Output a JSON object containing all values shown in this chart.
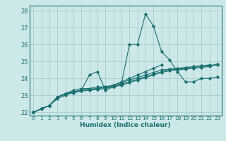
{
  "title": "",
  "xlabel": "Humidex (Indice chaleur)",
  "background_color": "#cce8e8",
  "grid_color": "#aacccc",
  "line_color": "#1a7070",
  "xlim": [
    -0.5,
    23.5
  ],
  "ylim": [
    21.8,
    28.3
  ],
  "yticks": [
    22,
    23,
    24,
    25,
    26,
    27,
    28
  ],
  "xticks": [
    0,
    1,
    2,
    3,
    4,
    5,
    6,
    7,
    8,
    9,
    10,
    11,
    12,
    13,
    14,
    15,
    16,
    17,
    18,
    19,
    20,
    21,
    22,
    23
  ],
  "series": [
    [
      22.0,
      22.2,
      22.4,
      22.8,
      23.0,
      23.2,
      23.3,
      24.2,
      24.4,
      23.3,
      23.5,
      23.7,
      26.0,
      26.0,
      27.8,
      27.1,
      25.6,
      25.1,
      24.4,
      23.8,
      23.8,
      24.0,
      24.0,
      24.1
    ],
    [
      22.0,
      22.2,
      22.4,
      22.9,
      23.1,
      23.3,
      23.4,
      23.4,
      23.5,
      23.5,
      23.6,
      23.8,
      24.0,
      24.2,
      24.4,
      24.6,
      24.8,
      null,
      null,
      null,
      null,
      null,
      null,
      null
    ],
    [
      22.0,
      22.2,
      22.4,
      22.9,
      23.1,
      23.2,
      23.3,
      23.35,
      23.4,
      23.5,
      23.6,
      23.75,
      23.9,
      24.05,
      24.2,
      24.35,
      24.5,
      24.55,
      24.6,
      24.65,
      24.7,
      24.75,
      24.8,
      null
    ],
    [
      22.0,
      22.2,
      22.4,
      22.9,
      23.1,
      23.2,
      23.3,
      23.35,
      23.4,
      23.45,
      23.55,
      23.65,
      23.8,
      23.95,
      24.1,
      24.25,
      24.4,
      24.5,
      24.55,
      24.6,
      24.65,
      24.7,
      24.75,
      24.85
    ],
    [
      22.0,
      22.2,
      22.4,
      22.9,
      23.05,
      23.15,
      23.25,
      23.3,
      23.35,
      23.4,
      23.5,
      23.6,
      23.75,
      23.9,
      24.05,
      24.2,
      24.35,
      24.45,
      24.5,
      24.55,
      24.6,
      24.65,
      24.7,
      24.8
    ]
  ],
  "ylabel_ticks": [
    "22",
    "23",
    "24",
    "25",
    "26",
    "27",
    "28"
  ]
}
